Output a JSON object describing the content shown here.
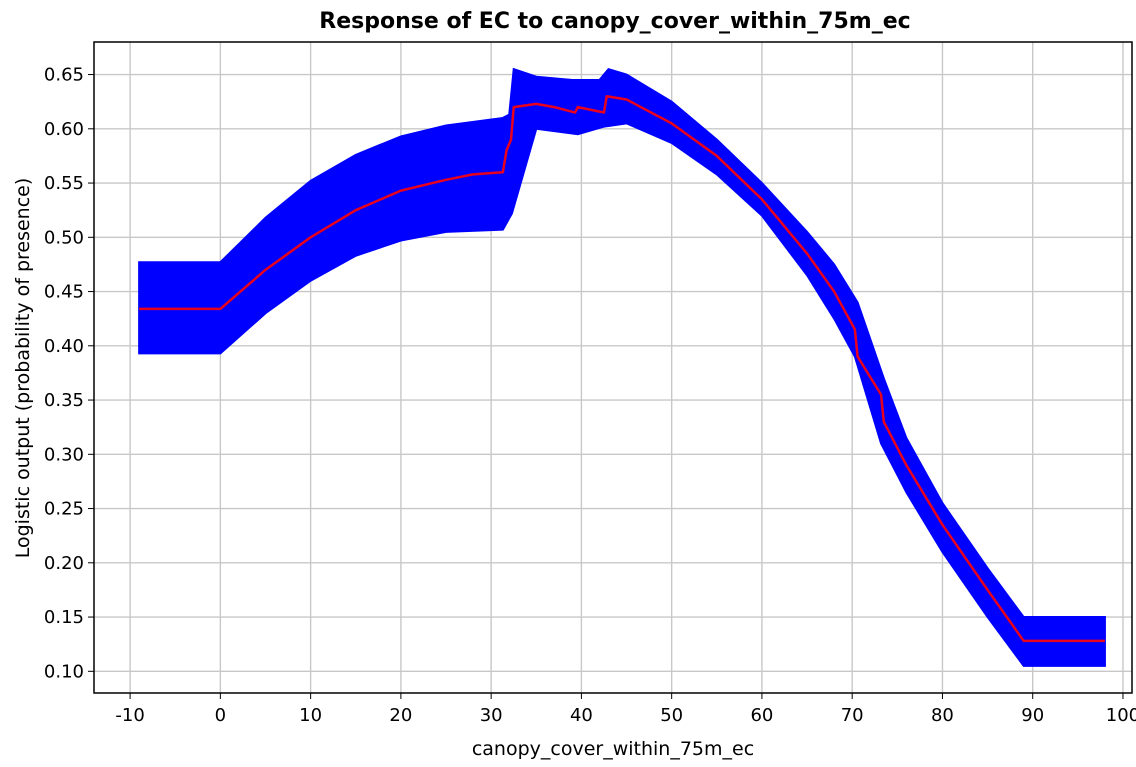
{
  "chart_data": {
    "type": "line",
    "title": "Response of EC to canopy_cover_within_75m_ec",
    "xlabel": "canopy_cover_within_75m_ec",
    "ylabel": "Logistic output (probability of presence)",
    "xlim": [
      -14,
      101
    ],
    "ylim": [
      0.08,
      0.68
    ],
    "xticks": [
      -10,
      0,
      10,
      20,
      30,
      40,
      50,
      60,
      70,
      80,
      90,
      100
    ],
    "yticks": [
      0.1,
      0.15,
      0.2,
      0.25,
      0.3,
      0.35,
      0.4,
      0.45,
      0.5,
      0.55,
      0.6,
      0.65
    ],
    "ytick_labels": [
      "0.10",
      "0.15",
      "0.20",
      "0.25",
      "0.30",
      "0.35",
      "0.40",
      "0.45",
      "0.50",
      "0.55",
      "0.60",
      "0.65"
    ],
    "grid": true,
    "series": [
      {
        "role": "mean response",
        "color": "#e8001c",
        "x": [
          -9,
          0,
          5,
          10,
          15,
          20,
          25,
          28,
          31.3,
          31.7,
          32.2,
          32.5,
          35,
          37,
          39.3,
          39.6,
          42.5,
          42.8,
          45,
          50,
          55,
          60,
          65,
          68,
          70.3,
          70.6,
          73.2,
          73.5,
          76,
          80,
          85,
          89,
          98
        ],
        "y": [
          0.434,
          0.434,
          0.47,
          0.5,
          0.525,
          0.543,
          0.553,
          0.558,
          0.56,
          0.58,
          0.59,
          0.62,
          0.623,
          0.62,
          0.615,
          0.62,
          0.615,
          0.63,
          0.627,
          0.605,
          0.575,
          0.535,
          0.485,
          0.45,
          0.415,
          0.39,
          0.355,
          0.33,
          0.29,
          0.235,
          0.175,
          0.128,
          0.128
        ]
      },
      {
        "role": "upper band",
        "color": "#0000ff",
        "x": [
          -9,
          0,
          5,
          10,
          15,
          20,
          25,
          31.3,
          32,
          32.5,
          35,
          39,
          42,
          43,
          45,
          50,
          55,
          60,
          65,
          68,
          70.6,
          73.5,
          76,
          80,
          85,
          89,
          98
        ],
        "y": [
          0.477,
          0.477,
          0.518,
          0.552,
          0.576,
          0.593,
          0.603,
          0.61,
          0.613,
          0.655,
          0.648,
          0.645,
          0.645,
          0.655,
          0.65,
          0.625,
          0.59,
          0.55,
          0.505,
          0.475,
          0.44,
          0.37,
          0.315,
          0.255,
          0.195,
          0.15,
          0.15
        ]
      },
      {
        "role": "lower band",
        "color": "#0000ff",
        "x": [
          -9,
          0,
          5,
          10,
          15,
          20,
          25,
          31.3,
          32.3,
          35,
          39.6,
          42.5,
          45,
          50,
          55,
          60,
          65,
          68,
          70.3,
          73.2,
          76,
          80,
          85,
          89,
          98
        ],
        "y": [
          0.393,
          0.393,
          0.43,
          0.46,
          0.483,
          0.497,
          0.505,
          0.507,
          0.522,
          0.6,
          0.595,
          0.602,
          0.605,
          0.587,
          0.558,
          0.52,
          0.465,
          0.425,
          0.39,
          0.31,
          0.265,
          0.21,
          0.15,
          0.105,
          0.105
        ]
      }
    ]
  }
}
